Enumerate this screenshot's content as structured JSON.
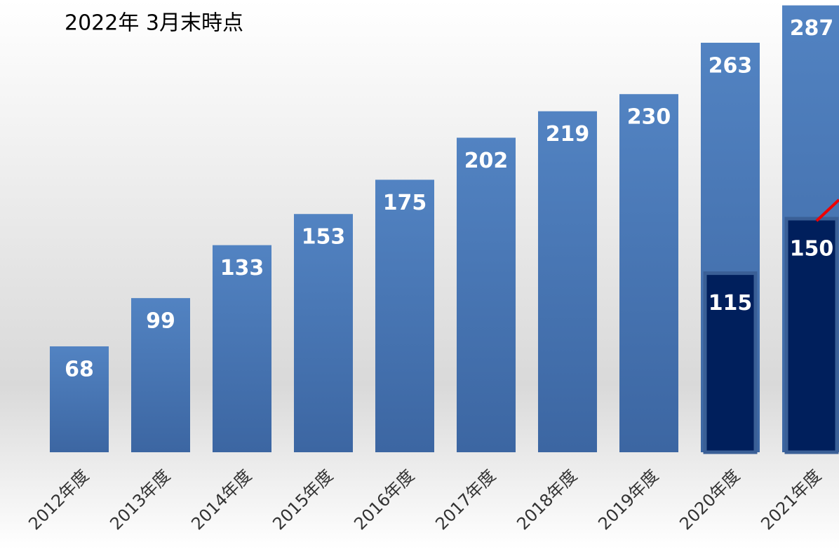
{
  "chart_data": {
    "type": "bar",
    "title": "2022年 3月末時点",
    "categories": [
      "2012年度",
      "2013年度",
      "2014年度",
      "2015年度",
      "2016年度",
      "2017年度",
      "2018年度",
      "2019年度",
      "2020年度",
      "2021年度"
    ],
    "series": [
      {
        "color": "#4a78b8",
        "values": [
          68,
          99,
          133,
          153,
          175,
          202,
          219,
          230,
          263,
          287
        ]
      },
      {
        "color": "#001f5c",
        "values": [
          null,
          null,
          null,
          null,
          null,
          null,
          null,
          null,
          115,
          150
        ]
      }
    ],
    "ylim": [
      0,
      290
    ]
  }
}
